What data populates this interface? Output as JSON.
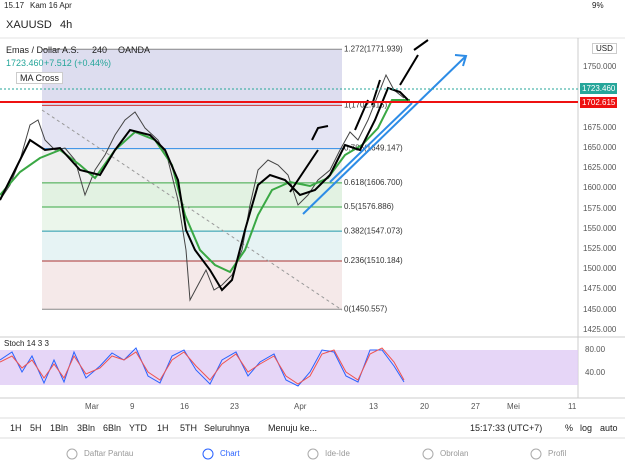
{
  "status": {
    "time": "15.17",
    "date": "Kam 16 Apr",
    "battery": "9%"
  },
  "header": {
    "symbol": "XAUUSD",
    "interval": "4h"
  },
  "legend": {
    "name": "Emas / Dollar A.S.",
    "interval": "240",
    "source": "OANDA",
    "price": "1723.460",
    "change": "+7.512 (+0.44%)",
    "indicator": "MA Cross"
  },
  "price_axis": {
    "currency": "USD",
    "ticks": [
      "1750.000",
      "1675.000",
      "1650.000",
      "1625.000",
      "1600.000",
      "1575.000",
      "1550.000",
      "1525.000",
      "1500.000",
      "1475.000",
      "1450.000",
      "1425.000"
    ],
    "last_price": "1723.460",
    "line_price": "1702.615"
  },
  "fib_levels": [
    {
      "label": "1.272(1771.939)",
      "price": 1771.939
    },
    {
      "label": "1(1702.615)",
      "price": 1702.615
    },
    {
      "label": "0.786(1649.147)",
      "price": 1649.147
    },
    {
      "label": "0.618(1606.700)",
      "price": 1606.7
    },
    {
      "label": "0.5(1576.886)",
      "price": 1576.886
    },
    {
      "label": "0.382(1547.073)",
      "price": 1547.073
    },
    {
      "label": "0.236(1510.184)",
      "price": 1510.184
    },
    {
      "label": "0(1450.557)",
      "price": 1450.557
    }
  ],
  "stoch": {
    "name": "Stoch 14 3 3",
    "ticks": [
      "80.00",
      "40.00"
    ]
  },
  "time_axis": [
    "Mar",
    "9",
    "16",
    "23",
    "Apr",
    "13",
    "20",
    "27",
    "Mei",
    "11"
  ],
  "toolbar": [
    "1H",
    "5H",
    "1Bln",
    "3Bln",
    "6Bln",
    "YTD",
    "1H",
    "5TH",
    "Seluruhnya",
    "Menuju ke...",
    "15:17:33 (UTC+7)",
    "%",
    "log",
    "auto"
  ],
  "tabs": [
    "Daftar Pantau",
    "Chart",
    "Ide-Ide",
    "Obrolan",
    "Profil"
  ]
}
